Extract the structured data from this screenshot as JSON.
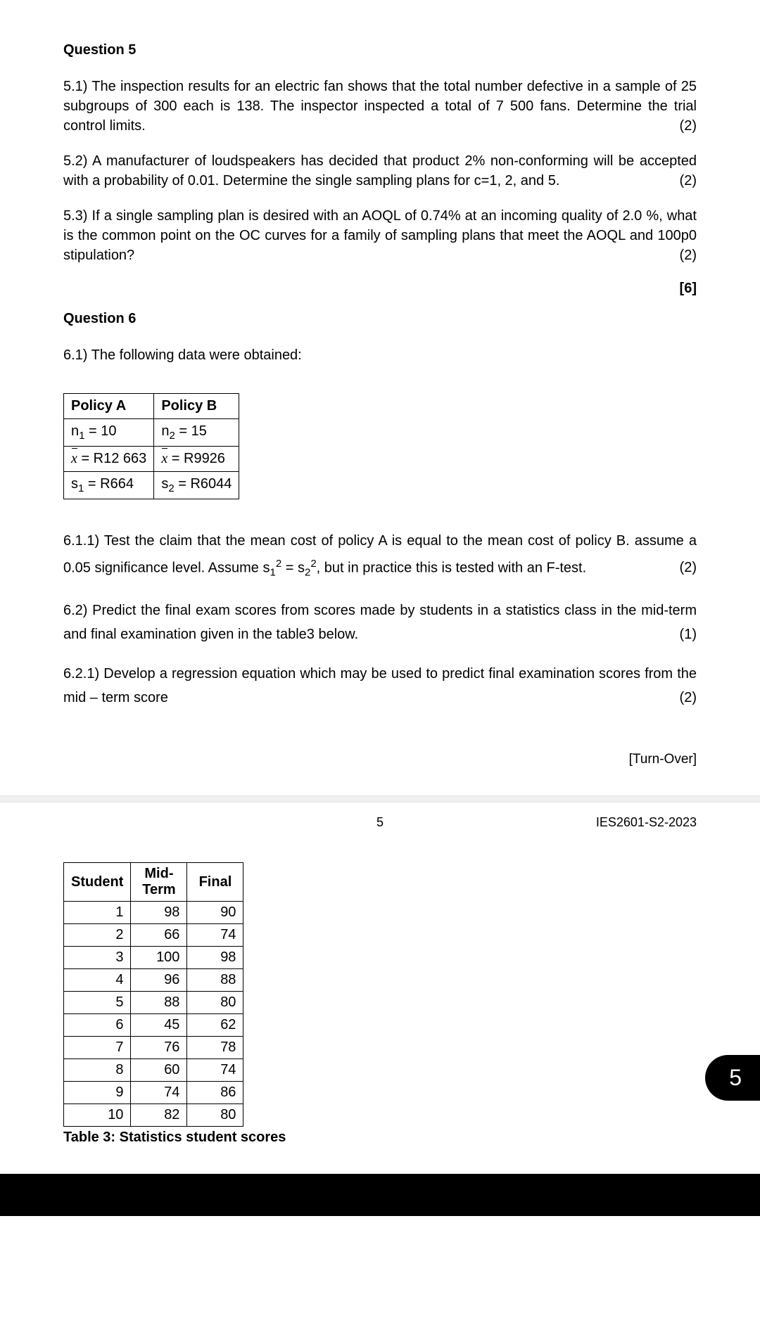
{
  "q5": {
    "heading": "Question 5",
    "p1_text": "5.1) The inspection results for an electric fan shows that the total number defective in a sample of 25 subgroups of 300 each is 138.  The inspector inspected a total of 7 500 fans.  Determine the trial control limits.",
    "p1_marks": "(2)",
    "p2_text": "5.2) A manufacturer of loudspeakers has decided that product 2% non-conforming will be accepted with a probability of 0.01. Determine the single sampling plans for c=1, 2, and 5.",
    "p2_marks": "(2)",
    "p3_text": "5.3) If a single sampling plan is desired with an AOQL of 0.74% at an incoming quality of 2.0 %, what is the common point on the OC curves for a family of sampling plans that meet the AOQL and 100p0 stipulation?",
    "p3_marks": "(2)",
    "total": "[6]"
  },
  "q6": {
    "heading": "Question 6",
    "p61": "6.1) The following data were obtained:",
    "policy": {
      "hA": "Policy A",
      "hB": "Policy B",
      "r1a_pre": "n",
      "r1a_sub": "1",
      "r1a_post": " = 10",
      "r1b_pre": "n",
      "r1b_sub": "2",
      "r1b_post": " = 15",
      "r2a_post": " = R12 663",
      "r2b_post": " = R9926",
      "r3a_pre": "s",
      "r3a_sub": "1",
      "r3a_post": " = R664",
      "r3b_pre": "s",
      "r3b_sub": "2",
      "r3b_post": " = R6044"
    },
    "p611_a": "6.1.1) Test the claim that the mean cost of policy A is equal to the mean cost of policy B. assume a 0.05 significance level. Assume s",
    "p611_b": " = s",
    "p611_c": ", but in practice this is tested with an F-test.",
    "p611_marks": "(2)",
    "p62_text": "6.2) Predict the final exam scores from scores made by students in a statistics class in the mid-term and final examination given in the table3 below.",
    "p62_marks": "(1)",
    "p621_text": "6.2.1) Develop a regression equation which may be used to predict final examination scores from the mid – term score",
    "p621_marks": "(2)"
  },
  "turnover": "[Turn-Over]",
  "footer": {
    "page_num": "5",
    "code": "IES2601-S2-2023"
  },
  "scores": {
    "h_student": "Student",
    "h_mid": "Mid-Term",
    "h_final": "Final",
    "rows": [
      {
        "s": "1",
        "m": "98",
        "f": "90"
      },
      {
        "s": "2",
        "m": "66",
        "f": "74"
      },
      {
        "s": "3",
        "m": "100",
        "f": "98"
      },
      {
        "s": "4",
        "m": "96",
        "f": "88"
      },
      {
        "s": "5",
        "m": "88",
        "f": "80"
      },
      {
        "s": "6",
        "m": "45",
        "f": "62"
      },
      {
        "s": "7",
        "m": "76",
        "f": "78"
      },
      {
        "s": "8",
        "m": "60",
        "f": "74"
      },
      {
        "s": "9",
        "m": "74",
        "f": "86"
      },
      {
        "s": "10",
        "m": "82",
        "f": "80"
      }
    ],
    "caption": "Table 3: Statistics student scores"
  },
  "indicator": "5"
}
